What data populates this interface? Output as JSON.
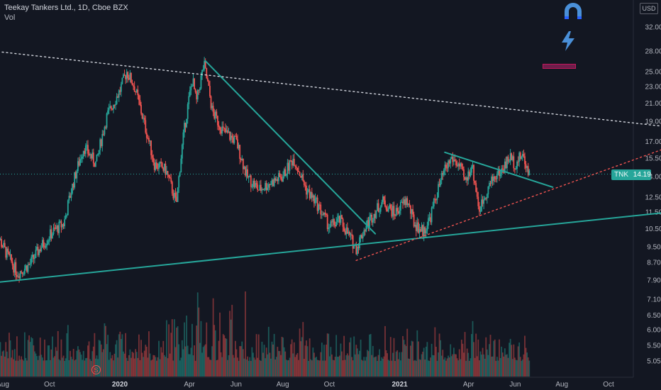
{
  "header": {
    "title": "Teekay Tankers Ltd., 1D, Cboe BZX",
    "volume_label": "Vol"
  },
  "currency_badge": "USD",
  "price_tag": {
    "symbol": "TNK",
    "value": "14.19"
  },
  "event_marker": "S",
  "icons": [
    "magnet-icon",
    "lightning-icon"
  ],
  "colors": {
    "background": "#131722",
    "up": "#26a69a",
    "down": "#ef5350",
    "trendline": "#26a69a",
    "resistance_dotted": "#d1d4dc",
    "support_dotted": "#ef5350"
  },
  "chart_data": {
    "type": "candlestick",
    "title": "Teekay Tankers Ltd., 1D, Cboe BZX",
    "y_scale": "log",
    "y_ticks": [
      "32.00",
      "28.00",
      "25.00",
      "23.00",
      "21.00",
      "19.00",
      "17.00",
      "15.50",
      "14.00",
      "12.50",
      "11.50",
      "10.50",
      "9.50",
      "8.70",
      "7.90",
      "7.10",
      "6.50",
      "6.00",
      "5.50",
      "5.05"
    ],
    "x_ticks": [
      {
        "label": "Aug",
        "year": false
      },
      {
        "label": "Oct",
        "year": false
      },
      {
        "label": "2020",
        "year": true
      },
      {
        "label": "Apr",
        "year": false
      },
      {
        "label": "Jun",
        "year": false
      },
      {
        "label": "Aug",
        "year": false
      },
      {
        "label": "Oct",
        "year": false
      },
      {
        "label": "2021",
        "year": true
      },
      {
        "label": "Apr",
        "year": false
      },
      {
        "label": "Jun",
        "year": false
      },
      {
        "label": "Aug",
        "year": false
      },
      {
        "label": "Oct",
        "year": false
      }
    ],
    "last_price": 14.19,
    "price_path": [
      [
        "2019-07-20",
        10.5
      ],
      [
        "2019-08-05",
        9.2
      ],
      [
        "2019-08-20",
        8.2
      ],
      [
        "2019-09-05",
        8.6
      ],
      [
        "2019-09-20",
        9.5
      ],
      [
        "2019-10-05",
        10.3
      ],
      [
        "2019-10-20",
        10.8
      ],
      [
        "2019-11-01",
        13.5
      ],
      [
        "2019-11-15",
        16.5
      ],
      [
        "2019-12-01",
        15.0
      ],
      [
        "2019-12-15",
        19.5
      ],
      [
        "2020-01-01",
        22.5
      ],
      [
        "2020-01-10",
        25.0
      ],
      [
        "2020-01-20",
        23.0
      ],
      [
        "2020-02-01",
        19.0
      ],
      [
        "2020-02-15",
        15.0
      ],
      [
        "2020-03-01",
        14.5
      ],
      [
        "2020-03-15",
        12.0
      ],
      [
        "2020-03-25",
        18.0
      ],
      [
        "2020-04-05",
        24.0
      ],
      [
        "2020-04-10",
        21.0
      ],
      [
        "2020-04-20",
        26.0
      ],
      [
        "2020-05-01",
        20.0
      ],
      [
        "2020-05-15",
        18.0
      ],
      [
        "2020-06-01",
        17.0
      ],
      [
        "2020-06-15",
        14.0
      ],
      [
        "2020-07-01",
        13.0
      ],
      [
        "2020-07-15",
        13.5
      ],
      [
        "2020-08-01",
        14.0
      ],
      [
        "2020-08-15",
        15.5
      ],
      [
        "2020-09-01",
        13.0
      ],
      [
        "2020-09-15",
        12.0
      ],
      [
        "2020-10-01",
        10.6
      ],
      [
        "2020-10-15",
        11.0
      ],
      [
        "2020-10-25",
        10.2
      ],
      [
        "2020-11-05",
        9.4
      ],
      [
        "2020-11-15",
        10.4
      ],
      [
        "2020-11-25",
        11.2
      ],
      [
        "2020-12-10",
        12.2
      ],
      [
        "2020-12-25",
        11.4
      ],
      [
        "2021-01-10",
        12.3
      ],
      [
        "2021-01-20",
        10.8
      ],
      [
        "2021-02-01",
        10.3
      ],
      [
        "2021-02-10",
        11.2
      ],
      [
        "2021-02-20",
        13.0
      ],
      [
        "2021-03-01",
        14.5
      ],
      [
        "2021-03-10",
        15.5
      ],
      [
        "2021-03-20",
        14.8
      ],
      [
        "2021-03-28",
        13.5
      ],
      [
        "2021-04-05",
        15.0
      ],
      [
        "2021-04-15",
        11.6
      ],
      [
        "2021-04-25",
        13.0
      ],
      [
        "2021-05-05",
        14.0
      ],
      [
        "2021-05-15",
        14.5
      ],
      [
        "2021-05-25",
        15.6
      ],
      [
        "2021-06-01",
        15.0
      ],
      [
        "2021-06-10",
        15.8
      ],
      [
        "2021-06-20",
        14.19
      ]
    ],
    "drawings": [
      {
        "name": "long-support-line",
        "style": "solid",
        "points": [
          [
            "2019-07-25",
            7.8
          ],
          [
            "2021-12-20",
            11.5
          ]
        ]
      },
      {
        "name": "down-trendline",
        "style": "solid",
        "points": [
          [
            "2020-04-22",
            26.5
          ],
          [
            "2020-11-30",
            10.2
          ]
        ]
      },
      {
        "name": "wedge-upper-line",
        "style": "solid",
        "points": [
          [
            "2021-03-01",
            16.0
          ],
          [
            "2021-07-20",
            13.2
          ]
        ]
      },
      {
        "name": "resistance-dotted",
        "style": "dotted",
        "points": [
          [
            "2019-07-20",
            28.0
          ],
          [
            "2021-12-20",
            18.4
          ]
        ]
      },
      {
        "name": "support-dotted",
        "style": "dotted",
        "points": [
          [
            "2020-11-05",
            8.8
          ],
          [
            "2021-12-20",
            16.5
          ]
        ]
      }
    ]
  }
}
